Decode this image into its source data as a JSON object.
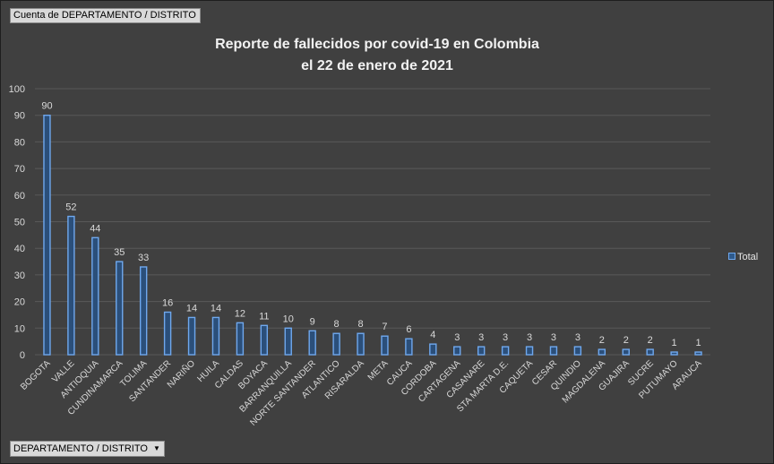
{
  "filters": {
    "value_field": "Cuenta de DEPARTAMENTO / DISTRITO",
    "axis_field": "DEPARTAMENTO / DISTRITO",
    "dropdown_icon": "triangle-down-icon"
  },
  "chart_data": {
    "type": "bar",
    "title_line1": "Reporte de fallecidos por covid-19 en Colombia",
    "title_line2": "el 22 de enero de 2021",
    "xlabel": "",
    "ylabel": "",
    "ylim": [
      0,
      100
    ],
    "yticks": [
      0,
      10,
      20,
      30,
      40,
      50,
      60,
      70,
      80,
      90,
      100
    ],
    "grid": true,
    "legend": "right",
    "categories": [
      "BOGOTA",
      "VALLE",
      "ANTIOQUIA",
      "CUNDINAMARCA",
      "TOLIMA",
      "SANTANDER",
      "NARIÑO",
      "HUILA",
      "CALDAS",
      "BOYACA",
      "BARRANQUILLA",
      "NORTE SANTANDER",
      "ATLANTICO",
      "RISARALDA",
      "META",
      "CAUCA",
      "CORDOBA",
      "CARTAGENA",
      "CASANARE",
      "STA MARTA D.E.",
      "CAQUETA",
      "CESAR",
      "QUINDIO",
      "MAGDALENA",
      "GUAJIRA",
      "SUCRE",
      "PUTUMAYO",
      "ARAUCA"
    ],
    "series": [
      {
        "name": "Total",
        "values": [
          90,
          52,
          44,
          35,
          33,
          16,
          14,
          14,
          12,
          11,
          10,
          9,
          8,
          8,
          7,
          6,
          4,
          3,
          3,
          3,
          3,
          3,
          3,
          2,
          2,
          2,
          1,
          1
        ]
      }
    ],
    "colors": {
      "bar_fill": "#2b4f7a",
      "bar_edge": "#6fa8ee",
      "gridline": "#595959",
      "text": "#d9d9d9"
    }
  }
}
